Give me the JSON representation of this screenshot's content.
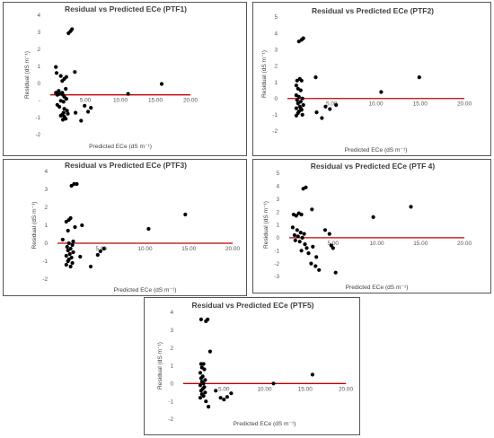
{
  "chart_data": [
    {
      "type": "scatter",
      "title": "Residual vs Predicted ECe (PTF1)",
      "xlabel": "Predicted ECe (dS m⁻¹)",
      "ylabel": "Residual (dS m⁻¹)",
      "xlim": [
        0,
        20
      ],
      "ylim": [
        -2,
        4
      ],
      "xticks": [
        "5.00",
        "10.00",
        "15.00",
        "20.00"
      ],
      "yticks": [
        "-2",
        "-1",
        "-",
        "0",
        "1",
        "2",
        "3",
        "4"
      ],
      "zero_line": true,
      "grid": false,
      "x": [
        2.6,
        2.9,
        3.1,
        0.8,
        0.9,
        2.3,
        2.0,
        1.7,
        1.5,
        3.5,
        1.2,
        0.8,
        1.0,
        1.3,
        1.7,
        1.8,
        2.2,
        2.0,
        2.3,
        1.5,
        1.9,
        1.0,
        1.3,
        2.0,
        2.4,
        1.9,
        1.7,
        2.0,
        2.2,
        1.5,
        1.8,
        2.5,
        3.6,
        4.4,
        4.9,
        5.4,
        5.8,
        11.1,
        15.9
      ],
      "y": [
        3.1,
        3.2,
        3.3,
        1.4,
        1.1,
        0.9,
        0.8,
        0.7,
        0.95,
        1.15,
        0.2,
        0.1,
        0.0,
        0.05,
        0.1,
        0.0,
        0.3,
        -0.1,
        -0.2,
        -0.3,
        -0.35,
        -0.5,
        -0.6,
        -0.7,
        -0.8,
        -0.9,
        -1.0,
        -1.1,
        -1.2,
        -1.05,
        -1.25,
        -0.95,
        -0.9,
        -1.3,
        -0.55,
        -0.85,
        -0.65,
        0.05,
        0.55
      ]
    },
    {
      "type": "scatter",
      "title": "Residual vs Predicted ECe (PTF2)",
      "xlabel": "Predicted ECe (dS m⁻¹)",
      "ylabel": "Residual (dS m⁻¹)",
      "xlim": [
        0,
        20
      ],
      "ylim": [
        -2,
        5
      ],
      "xticks": [
        "5.00",
        "10.00",
        "15.00",
        "20.00"
      ],
      "yticks": [
        "-2",
        "-1",
        "0",
        "1",
        "2",
        "3",
        "4",
        "5"
      ],
      "zero_line": true,
      "grid": false,
      "x": [
        1.3,
        1.6,
        1.8,
        1.1,
        1.4,
        1.0,
        1.6,
        3.2,
        1.2,
        1.5,
        1.0,
        1.3,
        1.7,
        1.1,
        1.5,
        1.2,
        1.8,
        1.4,
        1.0,
        1.6,
        1.3,
        1.2,
        1.7,
        1.0,
        1.5,
        3.3,
        3.9,
        4.3,
        4.8,
        5.5,
        10.6,
        14.9
      ],
      "y": [
        3.5,
        3.6,
        3.7,
        1.1,
        1.2,
        0.8,
        1.1,
        1.3,
        0.6,
        0.5,
        0.2,
        0.1,
        0.0,
        -0.1,
        -0.2,
        -0.3,
        -0.4,
        -0.5,
        -0.6,
        -0.7,
        -0.8,
        -0.9,
        -1.0,
        -1.05,
        -0.6,
        -0.85,
        -1.2,
        -0.5,
        -0.65,
        -0.4,
        0.4,
        1.3
      ]
    },
    {
      "type": "scatter",
      "title": "Residual vs Predicted ECe (PTF3)",
      "xlabel": "Predicted ECe (dS m⁻¹)",
      "ylabel": "Residual (dS m⁻¹)",
      "xlim": [
        0,
        20
      ],
      "ylim": [
        -2,
        4
      ],
      "xticks": [
        "5.00",
        "10.00",
        "15.00",
        "20.00"
      ],
      "yticks": [
        "-2",
        "-1",
        "0",
        "1",
        "2",
        "3",
        "4"
      ],
      "zero_line": true,
      "grid": false,
      "x": [
        1.6,
        1.9,
        2.2,
        1.3,
        1.0,
        1.5,
        2.0,
        2.8,
        1.2,
        0.6,
        1.8,
        1.3,
        1.7,
        1.1,
        1.5,
        1.2,
        1.8,
        1.4,
        1.0,
        1.6,
        1.3,
        1.2,
        1.7,
        1.0,
        1.5,
        2.6,
        3.8,
        4.6,
        4.9,
        5.3,
        10.4,
        14.6
      ],
      "y": [
        3.2,
        3.3,
        3.3,
        1.3,
        1.2,
        1.4,
        0.9,
        1.0,
        0.7,
        0.2,
        0.1,
        0.0,
        -0.1,
        -0.2,
        -0.3,
        -0.4,
        -0.5,
        -0.6,
        -0.7,
        -0.8,
        -0.9,
        -1.0,
        -1.1,
        -1.2,
        -1.3,
        -0.75,
        -1.3,
        -0.65,
        -0.45,
        -0.3,
        0.8,
        1.6
      ]
    },
    {
      "type": "scatter",
      "title": "Residual vs Predicted ECe (PTF 4)",
      "xlabel": "Predicted ECe (dS m⁻¹)",
      "ylabel": "Residual (dS m⁻¹)",
      "xlim": [
        0,
        20
      ],
      "ylim": [
        -3,
        5
      ],
      "xticks": [
        "5.00",
        "10.00",
        "15.00",
        "20.00"
      ],
      "yticks": [
        "-3",
        "-2",
        "-1",
        "0",
        "1",
        "2",
        "3",
        "4",
        "5"
      ],
      "zero_line": true,
      "grid": false,
      "x": [
        1.6,
        1.9,
        0.5,
        0.8,
        1.1,
        1.4,
        2.6,
        0.4,
        0.9,
        1.3,
        1.7,
        0.6,
        1.0,
        1.5,
        0.7,
        1.2,
        1.8,
        2.0,
        1.4,
        2.2,
        2.5,
        3.0,
        3.4,
        3.1,
        2.7,
        4.1,
        4.6,
        4.8,
        5.0,
        5.3,
        9.6,
        13.9
      ],
      "y": [
        3.8,
        3.9,
        1.8,
        1.7,
        1.9,
        1.8,
        2.2,
        0.8,
        0.6,
        0.4,
        0.3,
        0.2,
        0.1,
        0.0,
        -0.2,
        -0.3,
        -0.5,
        -0.8,
        -1.0,
        -1.2,
        -2.0,
        -2.2,
        -2.5,
        -1.5,
        -0.7,
        0.6,
        0.3,
        -0.6,
        -0.8,
        -2.7,
        1.6,
        2.4
      ]
    },
    {
      "type": "scatter",
      "title": "Residual vs Predicted ECe (PTF5)",
      "xlabel": "Predicted ECe (dS m⁻¹)",
      "ylabel": "Residual (dS m⁻¹)",
      "xlim": [
        0,
        20
      ],
      "ylim": [
        -2,
        4
      ],
      "xticks": [
        "5.00",
        "10.00",
        "15.00",
        "20.00"
      ],
      "yticks": [
        "-2",
        "-1",
        "0",
        "1",
        "2",
        "3",
        "4"
      ],
      "zero_line": true,
      "grid": false,
      "x": [
        2.2,
        2.8,
        3.0,
        3.3,
        2.2,
        2.5,
        2.3,
        2.6,
        2.1,
        2.4,
        2.2,
        2.7,
        2.3,
        2.5,
        2.1,
        2.6,
        2.4,
        2.2,
        2.7,
        2.3,
        2.5,
        2.1,
        2.8,
        3.1,
        4.0,
        4.6,
        5.0,
        5.4,
        5.9,
        11.1,
        15.9
      ],
      "y": [
        3.6,
        3.5,
        3.6,
        1.8,
        1.1,
        1.1,
        0.9,
        0.8,
        0.6,
        0.4,
        0.3,
        0.2,
        0.1,
        0.0,
        -0.1,
        -0.2,
        -0.3,
        -0.4,
        -0.5,
        -0.6,
        -0.7,
        -0.8,
        -1.0,
        -1.3,
        -0.4,
        -0.8,
        -0.9,
        -0.75,
        -0.55,
        0.0,
        0.5
      ]
    }
  ]
}
